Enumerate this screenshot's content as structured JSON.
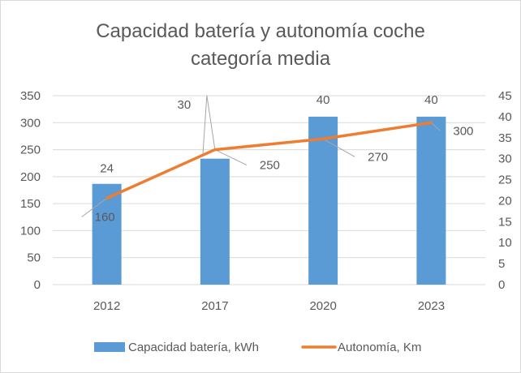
{
  "chart_data": {
    "type": "bar",
    "title_line1": "Capacidad batería y autonomía coche",
    "title_line2": "categoría media",
    "categories": [
      "2012",
      "2017",
      "2020",
      "2023"
    ],
    "series": [
      {
        "name": "Capacidad batería, kWh",
        "kind": "bar",
        "axis": "right",
        "values": [
          24,
          30,
          40,
          40
        ],
        "data_labels": [
          "24",
          "30",
          "40",
          "40"
        ]
      },
      {
        "name": "Autonomía, Km",
        "kind": "line",
        "axis": "left",
        "values": [
          160,
          250,
          270,
          300
        ],
        "data_labels": [
          "160",
          "250",
          "270",
          "300"
        ]
      }
    ],
    "y_left": {
      "min": 0,
      "max": 350,
      "step": 50,
      "ticks": [
        "0",
        "50",
        "100",
        "150",
        "200",
        "250",
        "300",
        "350"
      ]
    },
    "y_right": {
      "min": 0,
      "max": 45,
      "step": 5,
      "ticks": [
        "0",
        "5",
        "10",
        "15",
        "20",
        "25",
        "30",
        "35",
        "40",
        "45"
      ]
    },
    "grid": true,
    "legend_position": "bottom",
    "colors": {
      "bar": "#5b9bd5",
      "line": "#ed7d31",
      "grid": "#d9d9d9",
      "text": "#595959",
      "leader": "#a6a6a6"
    }
  }
}
